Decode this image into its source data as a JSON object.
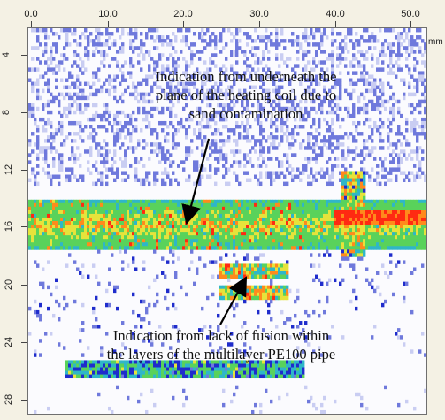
{
  "chart_data": {
    "type": "heatmap",
    "x_axis": {
      "unit": "mm",
      "range": [
        0,
        52
      ],
      "ticks": [
        "0.0",
        "10.0",
        "20.0",
        "30.0",
        "40.0",
        "50.0"
      ],
      "position": "top"
    },
    "y_axis": {
      "range": [
        2,
        29
      ],
      "ticks": [
        "4",
        "8",
        "12",
        "16",
        "20",
        "24",
        "28"
      ],
      "inverted": true
    },
    "features": [
      {
        "name": "main-band",
        "x": [
          0,
          52
        ],
        "y": [
          14,
          17.5
        ],
        "peak_x": [
          40,
          52
        ],
        "peak_y": 15.2
      },
      {
        "name": "upper-scatter",
        "x": [
          0,
          52
        ],
        "y": [
          2,
          13
        ],
        "intensity": "low"
      },
      {
        "name": "fusion-defect",
        "x": [
          25,
          34
        ],
        "y": [
          18.5,
          21
        ],
        "intensity": "high"
      },
      {
        "name": "lower-bands",
        "x": [
          5,
          36
        ],
        "y": [
          25,
          27
        ],
        "intensity": "medium"
      },
      {
        "name": "vertical-column",
        "x": [
          41,
          44
        ],
        "y": [
          12,
          18
        ],
        "intensity": "high"
      }
    ],
    "colormap": [
      "#ffffff",
      "#c9cdf2",
      "#6f79dc",
      "#1f2ccc",
      "#2fb6c8",
      "#59d25b",
      "#e6e33b",
      "#ff8a1c",
      "#ff2a12"
    ]
  },
  "annotations": {
    "top": {
      "lines": [
        "Indication from underneath the",
        "plane of the heating coil due to",
        "sand contamination"
      ]
    },
    "bottom": {
      "lines": [
        "Indication from lack of fusion within",
        "the layers of the multilayer PE100 pipe"
      ]
    }
  }
}
